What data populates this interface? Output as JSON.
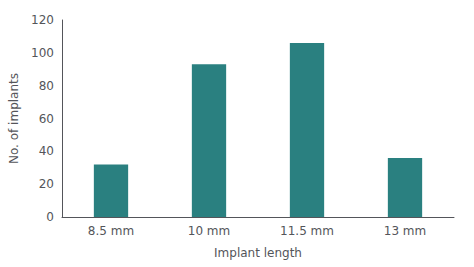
{
  "chart_data": {
    "type": "bar",
    "categories": [
      "8.5 mm",
      "10 mm",
      "11.5 mm",
      "13 mm"
    ],
    "values": [
      32,
      93,
      106,
      36
    ],
    "color": "#2a8080",
    "xlabel": "Implant length",
    "ylabel": "No. of implants",
    "ylim": [
      0,
      120
    ],
    "yticks": [
      0,
      20,
      40,
      60,
      80,
      100,
      120
    ],
    "grid": false
  }
}
